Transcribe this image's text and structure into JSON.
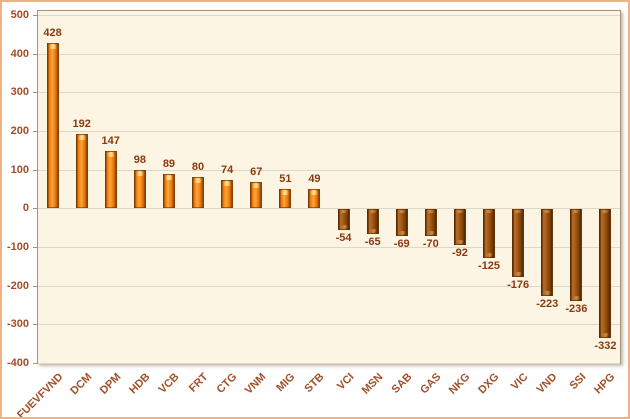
{
  "chart_data": {
    "type": "bar",
    "title": "",
    "xlabel": "",
    "ylabel": "",
    "categories": [
      "FUEVFVND",
      "DCM",
      "DPM",
      "HDB",
      "VCB",
      "FRT",
      "CTG",
      "VNM",
      "MIG",
      "STB",
      "VCI",
      "MSN",
      "SAB",
      "GAS",
      "NKG",
      "DXG",
      "VIC",
      "VND",
      "SSI",
      "HPG"
    ],
    "values": [
      428,
      192,
      147,
      98,
      89,
      80,
      74,
      67,
      51,
      49,
      -54,
      -65,
      -69,
      -70,
      -92,
      -125,
      -176,
      -223,
      -236,
      -332
    ],
    "value_labels": [
      "428",
      "192",
      "147",
      "98",
      "89",
      "80",
      "74",
      "67",
      "51",
      "49",
      "-54",
      "-65",
      "-69",
      "-70",
      "-92",
      "-125",
      "-176",
      "-223",
      "-236",
      "-332"
    ],
    "ylim": [
      -400,
      500
    ],
    "yticks": [
      500,
      400,
      300,
      200,
      100,
      0,
      -100,
      -200,
      -300,
      -400
    ],
    "grid": true,
    "legend": "none",
    "colors": {
      "positive_bar": "#F08018",
      "positive_bar_highlight": "#FFD27A",
      "negative_bar": "#96500F",
      "value_label": "#8B3A10",
      "axis_label": "#A2512B",
      "plot_background": "#FCF5E3",
      "outer_background": "#FFFFFF",
      "outer_frame_border": "#F0B188",
      "plot_border": "#A89475",
      "gridline": "#DBD8CB"
    }
  }
}
